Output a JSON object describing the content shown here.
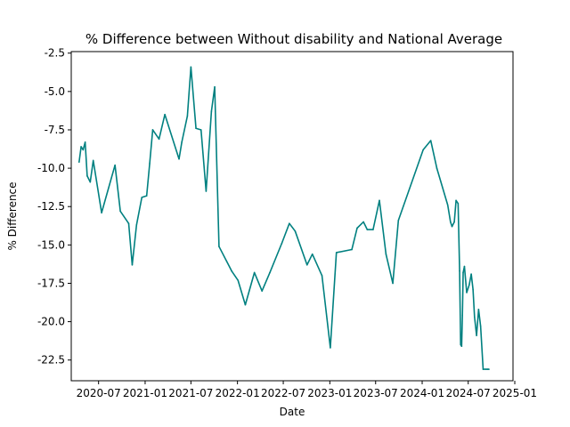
{
  "chart_data": {
    "type": "line",
    "title": "% Difference between Without disability and National Average",
    "xlabel": "Date",
    "ylabel": "% Difference",
    "xlim": [
      "2020-03-15",
      "2024-12-25"
    ],
    "ylim": [
      -23.85,
      -2.4
    ],
    "grid": false,
    "legend": "none",
    "x_ticks": [
      {
        "date": "2020-07-01",
        "label": "2020-07"
      },
      {
        "date": "2021-01-01",
        "label": "2021-01"
      },
      {
        "date": "2021-07-01",
        "label": "2021-07"
      },
      {
        "date": "2022-01-01",
        "label": "2022-01"
      },
      {
        "date": "2022-07-01",
        "label": "2022-07"
      },
      {
        "date": "2023-01-01",
        "label": "2023-01"
      },
      {
        "date": "2023-07-01",
        "label": "2023-07"
      },
      {
        "date": "2024-01-01",
        "label": "2024-01"
      },
      {
        "date": "2024-07-01",
        "label": "2024-07"
      },
      {
        "date": "2025-01-01",
        "label": "2025-01"
      }
    ],
    "y_ticks": [
      -22.5,
      -20.0,
      -17.5,
      -15.0,
      -12.5,
      -10.0,
      -7.5,
      -5.0,
      -2.5
    ],
    "series": [
      {
        "color": "#008080",
        "x": [
          "2020-04-15",
          "2020-04-23",
          "2020-05-01",
          "2020-05-09",
          "2020-05-17",
          "2020-05-29",
          "2020-06-10",
          "2020-07-13",
          "2020-09-04",
          "2020-09-25",
          "2020-10-28",
          "2020-11-11",
          "2020-11-28",
          "2020-12-19",
          "2021-01-07",
          "2021-01-19",
          "2021-01-31",
          "2021-02-25",
          "2021-03-20",
          "2021-05-15",
          "2021-05-26",
          "2021-06-17",
          "2021-07-01",
          "2021-07-21",
          "2021-08-10",
          "2021-08-30",
          "2021-09-20",
          "2021-10-03",
          "2021-10-20",
          "2021-12-09",
          "2022-01-03",
          "2022-02-01",
          "2022-03-09",
          "2022-04-08",
          "2022-05-09",
          "2022-06-25",
          "2022-07-25",
          "2022-08-17",
          "2022-10-03",
          "2022-10-24",
          "2022-12-01",
          "2023-01-03",
          "2023-01-27",
          "2023-03-29",
          "2023-04-19",
          "2023-05-14",
          "2023-05-29",
          "2023-06-21",
          "2023-07-16",
          "2023-08-11",
          "2023-09-07",
          "2023-09-29",
          "2024-01-05",
          "2024-02-04",
          "2024-02-28",
          "2024-04-11",
          "2024-04-22",
          "2024-04-28",
          "2024-05-07",
          "2024-05-14",
          "2024-05-22",
          "2024-05-28",
          "2024-06-01",
          "2024-06-05",
          "2024-06-08",
          "2024-06-11",
          "2024-06-16",
          "2024-06-25",
          "2024-07-05",
          "2024-07-13",
          "2024-07-20",
          "2024-07-26",
          "2024-08-03",
          "2024-08-11",
          "2024-08-19",
          "2024-08-29",
          "2024-09-10",
          "2024-09-16",
          "2024-09-21"
        ],
        "y": [
          -9.6,
          -8.6,
          -8.8,
          -8.3,
          -10.5,
          -10.9,
          -9.5,
          -12.9,
          -9.8,
          -12.8,
          -13.6,
          -16.3,
          -13.7,
          -11.9,
          -11.8,
          -9.7,
          -7.5,
          -8.1,
          -6.5,
          -9.4,
          -8.3,
          -6.6,
          -3.4,
          -7.4,
          -7.5,
          -11.5,
          -6.3,
          -4.7,
          -15.1,
          -16.7,
          -17.3,
          -18.9,
          -16.8,
          -18.0,
          -16.8,
          -14.9,
          -13.6,
          -14.1,
          -16.3,
          -15.6,
          -17.0,
          -21.7,
          -15.5,
          -15.3,
          -13.9,
          -13.5,
          -14.0,
          -14.0,
          -12.1,
          -15.6,
          -17.5,
          -13.4,
          -8.8,
          -8.2,
          -10.0,
          -12.4,
          -13.5,
          -13.8,
          -13.5,
          -12.1,
          -12.3,
          -16.7,
          -21.5,
          -21.6,
          -19.6,
          -16.8,
          -16.4,
          -18.1,
          -17.6,
          -16.9,
          -17.9,
          -19.7,
          -20.9,
          -19.2,
          -20.3,
          -23.1,
          -23.1,
          -23.1,
          -23.1
        ]
      }
    ]
  }
}
